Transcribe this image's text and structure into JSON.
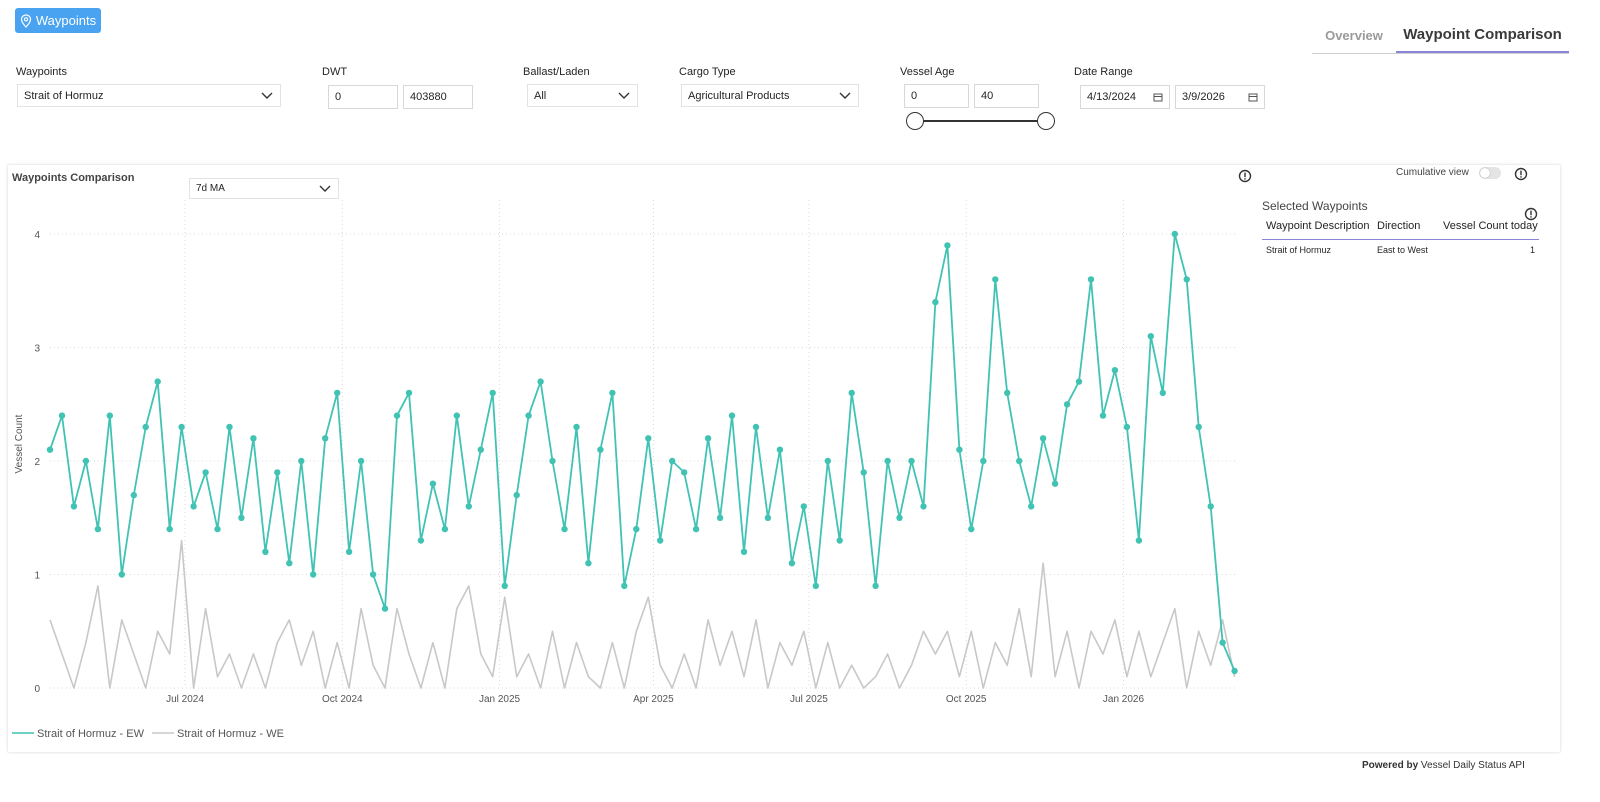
{
  "header": {
    "badge_label": "Waypoints",
    "tabs": [
      {
        "label": "Overview",
        "active": false
      },
      {
        "label": "Waypoint Comparison",
        "active": true
      }
    ]
  },
  "filters": {
    "waypoints": {
      "label": "Waypoints",
      "value": "Strait of Hormuz"
    },
    "dwt": {
      "label": "DWT",
      "min": "0",
      "max": "403880"
    },
    "ballast_laden": {
      "label": "Ballast/Laden",
      "value": "All"
    },
    "cargo_type": {
      "label": "Cargo Type",
      "value": "Agricultural Products"
    },
    "vessel_age": {
      "label": "Vessel Age",
      "min": "0",
      "max": "40",
      "range": [
        0,
        40
      ]
    },
    "date_range": {
      "label": "Date Range",
      "start": "4/13/2024",
      "end": "3/9/2026"
    }
  },
  "panel": {
    "title": "Waypoints Comparison",
    "ma_option": "7d MA",
    "cumulative_label": "Cumulative view",
    "cumulative_on": false
  },
  "selected_waypoints": {
    "title": "Selected Waypoints",
    "columns": [
      "Waypoint Description",
      "Direction",
      "Vessel Count today"
    ],
    "rows": [
      [
        "Strait of Hormuz",
        "East to West",
        "1"
      ]
    ]
  },
  "footer": {
    "prefix": "Powered by",
    "text": "Vessel Daily Status API"
  },
  "colors": {
    "accent": "#4aa3f0",
    "series_ew": "#41c3b4",
    "series_we": "#c8c8c8",
    "tab_underline": "#8a85d9"
  },
  "chart_data": {
    "type": "line",
    "ylabel": "Vessel Count",
    "ylim": [
      0,
      4.3
    ],
    "yticks": [
      0,
      1,
      2,
      3,
      4
    ],
    "xlim": [
      "2024-04-13",
      "2026-03-09"
    ],
    "xticks": [
      {
        "date": "2024-07-01",
        "label": "Jul 2024"
      },
      {
        "date": "2024-10-01",
        "label": "Oct 2024"
      },
      {
        "date": "2025-01-01",
        "label": "Jan 2025"
      },
      {
        "date": "2025-04-01",
        "label": "Apr 2025"
      },
      {
        "date": "2025-07-01",
        "label": "Jul 2025"
      },
      {
        "date": "2025-10-01",
        "label": "Oct 2025"
      },
      {
        "date": "2026-01-01",
        "label": "Jan 2026"
      }
    ],
    "grid": true,
    "legend_position": "bottom-left",
    "series": [
      {
        "name": "Strait of Hormuz - EW",
        "color": "#41c3b4",
        "markers": true,
        "points": [
          [
            "2024-04-13",
            2.1
          ],
          [
            "2024-04-20",
            2.4
          ],
          [
            "2024-04-27",
            1.6
          ],
          [
            "2024-05-04",
            2.0
          ],
          [
            "2024-05-11",
            1.4
          ],
          [
            "2024-05-18",
            2.4
          ],
          [
            "2024-05-25",
            1.0
          ],
          [
            "2024-06-01",
            1.7
          ],
          [
            "2024-06-08",
            2.3
          ],
          [
            "2024-06-15",
            2.7
          ],
          [
            "2024-06-22",
            1.4
          ],
          [
            "2024-06-29",
            2.3
          ],
          [
            "2024-07-06",
            1.6
          ],
          [
            "2024-07-13",
            1.9
          ],
          [
            "2024-07-20",
            1.4
          ],
          [
            "2024-07-27",
            2.3
          ],
          [
            "2024-08-03",
            1.5
          ],
          [
            "2024-08-10",
            2.2
          ],
          [
            "2024-08-17",
            1.2
          ],
          [
            "2024-08-24",
            1.9
          ],
          [
            "2024-08-31",
            1.1
          ],
          [
            "2024-09-07",
            2.0
          ],
          [
            "2024-09-14",
            1.0
          ],
          [
            "2024-09-21",
            2.2
          ],
          [
            "2024-09-28",
            2.6
          ],
          [
            "2024-10-05",
            1.2
          ],
          [
            "2024-10-12",
            2.0
          ],
          [
            "2024-10-19",
            1.0
          ],
          [
            "2024-10-26",
            0.7
          ],
          [
            "2024-11-02",
            2.4
          ],
          [
            "2024-11-09",
            2.6
          ],
          [
            "2024-11-16",
            1.3
          ],
          [
            "2024-11-23",
            1.8
          ],
          [
            "2024-11-30",
            1.4
          ],
          [
            "2024-12-07",
            2.4
          ],
          [
            "2024-12-14",
            1.6
          ],
          [
            "2024-12-21",
            2.1
          ],
          [
            "2024-12-28",
            2.6
          ],
          [
            "2025-01-04",
            0.9
          ],
          [
            "2025-01-11",
            1.7
          ],
          [
            "2025-01-18",
            2.4
          ],
          [
            "2025-01-25",
            2.7
          ],
          [
            "2025-02-01",
            2.0
          ],
          [
            "2025-02-08",
            1.4
          ],
          [
            "2025-02-15",
            2.3
          ],
          [
            "2025-02-22",
            1.1
          ],
          [
            "2025-03-01",
            2.1
          ],
          [
            "2025-03-08",
            2.6
          ],
          [
            "2025-03-15",
            0.9
          ],
          [
            "2025-03-22",
            1.4
          ],
          [
            "2025-03-29",
            2.2
          ],
          [
            "2025-04-05",
            1.3
          ],
          [
            "2025-04-12",
            2.0
          ],
          [
            "2025-04-19",
            1.9
          ],
          [
            "2025-04-26",
            1.4
          ],
          [
            "2025-05-03",
            2.2
          ],
          [
            "2025-05-10",
            1.5
          ],
          [
            "2025-05-17",
            2.4
          ],
          [
            "2025-05-24",
            1.2
          ],
          [
            "2025-05-31",
            2.3
          ],
          [
            "2025-06-07",
            1.5
          ],
          [
            "2025-06-14",
            2.1
          ],
          [
            "2025-06-21",
            1.1
          ],
          [
            "2025-06-28",
            1.6
          ],
          [
            "2025-07-05",
            0.9
          ],
          [
            "2025-07-12",
            2.0
          ],
          [
            "2025-07-19",
            1.3
          ],
          [
            "2025-07-26",
            2.6
          ],
          [
            "2025-08-02",
            1.9
          ],
          [
            "2025-08-09",
            0.9
          ],
          [
            "2025-08-16",
            2.0
          ],
          [
            "2025-08-23",
            1.5
          ],
          [
            "2025-08-30",
            2.0
          ],
          [
            "2025-09-06",
            1.6
          ],
          [
            "2025-09-13",
            3.4
          ],
          [
            "2025-09-20",
            3.9
          ],
          [
            "2025-09-27",
            2.1
          ],
          [
            "2025-10-04",
            1.4
          ],
          [
            "2025-10-11",
            2.0
          ],
          [
            "2025-10-18",
            3.6
          ],
          [
            "2025-10-25",
            2.6
          ],
          [
            "2025-11-01",
            2.0
          ],
          [
            "2025-11-08",
            1.6
          ],
          [
            "2025-11-15",
            2.2
          ],
          [
            "2025-11-22",
            1.8
          ],
          [
            "2025-11-29",
            2.5
          ],
          [
            "2025-12-06",
            2.7
          ],
          [
            "2025-12-13",
            3.6
          ],
          [
            "2025-12-20",
            2.4
          ],
          [
            "2025-12-27",
            2.8
          ],
          [
            "2026-01-03",
            2.3
          ],
          [
            "2026-01-10",
            1.3
          ],
          [
            "2026-01-17",
            3.1
          ],
          [
            "2026-01-24",
            2.6
          ],
          [
            "2026-01-31",
            4.0
          ],
          [
            "2026-02-07",
            3.6
          ],
          [
            "2026-02-14",
            2.3
          ],
          [
            "2026-02-21",
            1.6
          ],
          [
            "2026-02-28",
            0.4
          ],
          [
            "2026-03-07",
            0.15
          ]
        ]
      },
      {
        "name": "Strait of Hormuz - WE",
        "color": "#c8c8c8",
        "markers": false,
        "points": [
          [
            "2024-04-13",
            0.6
          ],
          [
            "2024-04-20",
            0.3
          ],
          [
            "2024-04-27",
            0.0
          ],
          [
            "2024-05-04",
            0.4
          ],
          [
            "2024-05-11",
            0.9
          ],
          [
            "2024-05-18",
            0.0
          ],
          [
            "2024-05-25",
            0.6
          ],
          [
            "2024-06-01",
            0.3
          ],
          [
            "2024-06-08",
            0.0
          ],
          [
            "2024-06-15",
            0.5
          ],
          [
            "2024-06-22",
            0.3
          ],
          [
            "2024-06-29",
            1.3
          ],
          [
            "2024-07-06",
            0.0
          ],
          [
            "2024-07-13",
            0.7
          ],
          [
            "2024-07-20",
            0.1
          ],
          [
            "2024-07-27",
            0.3
          ],
          [
            "2024-08-03",
            0.0
          ],
          [
            "2024-08-10",
            0.3
          ],
          [
            "2024-08-17",
            0.0
          ],
          [
            "2024-08-24",
            0.4
          ],
          [
            "2024-08-31",
            0.6
          ],
          [
            "2024-09-07",
            0.2
          ],
          [
            "2024-09-14",
            0.5
          ],
          [
            "2024-09-21",
            0.0
          ],
          [
            "2024-09-28",
            0.4
          ],
          [
            "2024-10-05",
            0.0
          ],
          [
            "2024-10-12",
            0.7
          ],
          [
            "2024-10-19",
            0.2
          ],
          [
            "2024-10-26",
            0.0
          ],
          [
            "2024-11-02",
            0.7
          ],
          [
            "2024-11-09",
            0.3
          ],
          [
            "2024-11-16",
            0.0
          ],
          [
            "2024-11-23",
            0.4
          ],
          [
            "2024-11-30",
            0.0
          ],
          [
            "2024-12-07",
            0.7
          ],
          [
            "2024-12-14",
            0.9
          ],
          [
            "2024-12-21",
            0.3
          ],
          [
            "2024-12-28",
            0.1
          ],
          [
            "2025-01-04",
            0.8
          ],
          [
            "2025-01-11",
            0.1
          ],
          [
            "2025-01-18",
            0.3
          ],
          [
            "2025-01-25",
            0.0
          ],
          [
            "2025-02-01",
            0.5
          ],
          [
            "2025-02-08",
            0.0
          ],
          [
            "2025-02-15",
            0.4
          ],
          [
            "2025-02-22",
            0.1
          ],
          [
            "2025-03-01",
            0.0
          ],
          [
            "2025-03-08",
            0.4
          ],
          [
            "2025-03-15",
            0.0
          ],
          [
            "2025-03-22",
            0.5
          ],
          [
            "2025-03-29",
            0.8
          ],
          [
            "2025-04-05",
            0.2
          ],
          [
            "2025-04-12",
            0.0
          ],
          [
            "2025-04-19",
            0.3
          ],
          [
            "2025-04-26",
            0.0
          ],
          [
            "2025-05-03",
            0.6
          ],
          [
            "2025-05-10",
            0.2
          ],
          [
            "2025-05-17",
            0.5
          ],
          [
            "2025-05-24",
            0.1
          ],
          [
            "2025-05-31",
            0.6
          ],
          [
            "2025-06-07",
            0.0
          ],
          [
            "2025-06-14",
            0.4
          ],
          [
            "2025-06-21",
            0.2
          ],
          [
            "2025-06-28",
            0.5
          ],
          [
            "2025-07-05",
            0.0
          ],
          [
            "2025-07-12",
            0.4
          ],
          [
            "2025-07-19",
            0.0
          ],
          [
            "2025-07-26",
            0.2
          ],
          [
            "2025-08-02",
            0.0
          ],
          [
            "2025-08-09",
            0.1
          ],
          [
            "2025-08-16",
            0.3
          ],
          [
            "2025-08-23",
            0.0
          ],
          [
            "2025-08-30",
            0.2
          ],
          [
            "2025-09-06",
            0.5
          ],
          [
            "2025-09-13",
            0.3
          ],
          [
            "2025-09-20",
            0.5
          ],
          [
            "2025-09-27",
            0.1
          ],
          [
            "2025-10-04",
            0.5
          ],
          [
            "2025-10-11",
            0.0
          ],
          [
            "2025-10-18",
            0.4
          ],
          [
            "2025-10-25",
            0.2
          ],
          [
            "2025-11-01",
            0.7
          ],
          [
            "2025-11-08",
            0.1
          ],
          [
            "2025-11-15",
            1.1
          ],
          [
            "2025-11-22",
            0.1
          ],
          [
            "2025-11-29",
            0.5
          ],
          [
            "2025-12-06",
            0.0
          ],
          [
            "2025-12-13",
            0.5
          ],
          [
            "2025-12-20",
            0.3
          ],
          [
            "2025-12-27",
            0.6
          ],
          [
            "2026-01-03",
            0.1
          ],
          [
            "2026-01-10",
            0.5
          ],
          [
            "2026-01-17",
            0.1
          ],
          [
            "2026-01-24",
            0.4
          ],
          [
            "2026-01-31",
            0.7
          ],
          [
            "2026-02-07",
            0.0
          ],
          [
            "2026-02-14",
            0.5
          ],
          [
            "2026-02-21",
            0.2
          ],
          [
            "2026-02-28",
            0.6
          ],
          [
            "2026-03-07",
            0.1
          ]
        ]
      }
    ]
  }
}
